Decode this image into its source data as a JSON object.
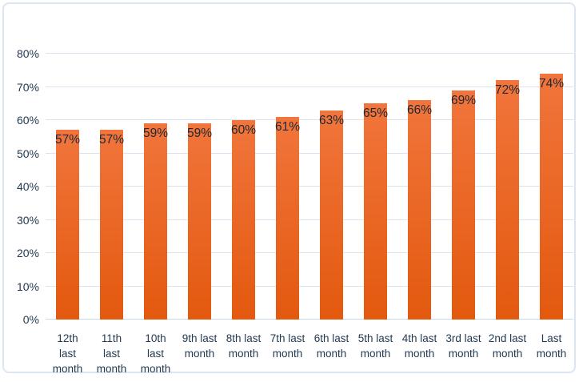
{
  "chart_data": {
    "type": "bar",
    "title": "",
    "xlabel": "",
    "ylabel": "",
    "categories": [
      "12th last month",
      "11th last month",
      "10th last month",
      "9th last month",
      "8th last month",
      "7th last month",
      "6th last month",
      "5th last month",
      "4th last month",
      "3rd last month",
      "2nd last month",
      "Last month"
    ],
    "category_label_lines": [
      [
        "12th",
        "last",
        "month"
      ],
      [
        "11th",
        "last",
        "month"
      ],
      [
        "10th",
        "last",
        "month"
      ],
      [
        "9th last",
        "month"
      ],
      [
        "8th last",
        "month"
      ],
      [
        "7th last",
        "month"
      ],
      [
        "6th last",
        "month"
      ],
      [
        "5th last",
        "month"
      ],
      [
        "4th last",
        "month"
      ],
      [
        "3rd last",
        "month"
      ],
      [
        "2nd last",
        "month"
      ],
      [
        "Last",
        "month"
      ]
    ],
    "values": [
      57,
      57,
      59,
      59,
      60,
      61,
      63,
      65,
      66,
      69,
      72,
      74
    ],
    "value_labels": [
      "57%",
      "57%",
      "59%",
      "59%",
      "60%",
      "61%",
      "63%",
      "65%",
      "66%",
      "69%",
      "72%",
      "74%"
    ],
    "yticks": [
      "0%",
      "10%",
      "20%",
      "30%",
      "40%",
      "50%",
      "60%",
      "70%",
      "80%"
    ],
    "ylim": [
      0,
      80
    ],
    "ytick_step": 10,
    "grid": true,
    "legend": "none",
    "data_label_position": "inside-top",
    "colors": {
      "bar_gradient_top": "#f1753c",
      "bar_gradient_bottom": "#e3590e",
      "gridline": "#d9e4f0",
      "axis_line": "#c9d8e9",
      "tick_label": "#243a52",
      "data_label": "#212936",
      "frame_border": "#dde6f0",
      "background": "#ffffff"
    }
  }
}
